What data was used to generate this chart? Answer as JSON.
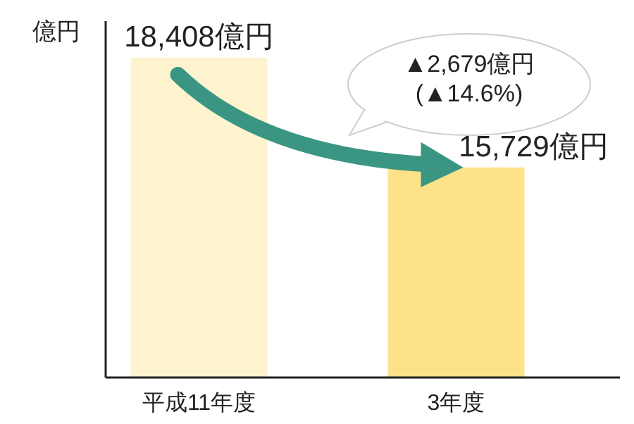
{
  "chart_data": {
    "type": "bar",
    "ylabel": "億円",
    "categories": [
      "平成11年度",
      "3年度"
    ],
    "values": [
      18408,
      15729
    ],
    "colors": [
      "#fdf3cf",
      "#fde28a"
    ],
    "value_labels": [
      "18,408億円",
      "15,729億円"
    ],
    "ylim": [
      10600,
      19300
    ],
    "annotations": [
      "▲2,679億円",
      "(▲14.6%)"
    ]
  }
}
